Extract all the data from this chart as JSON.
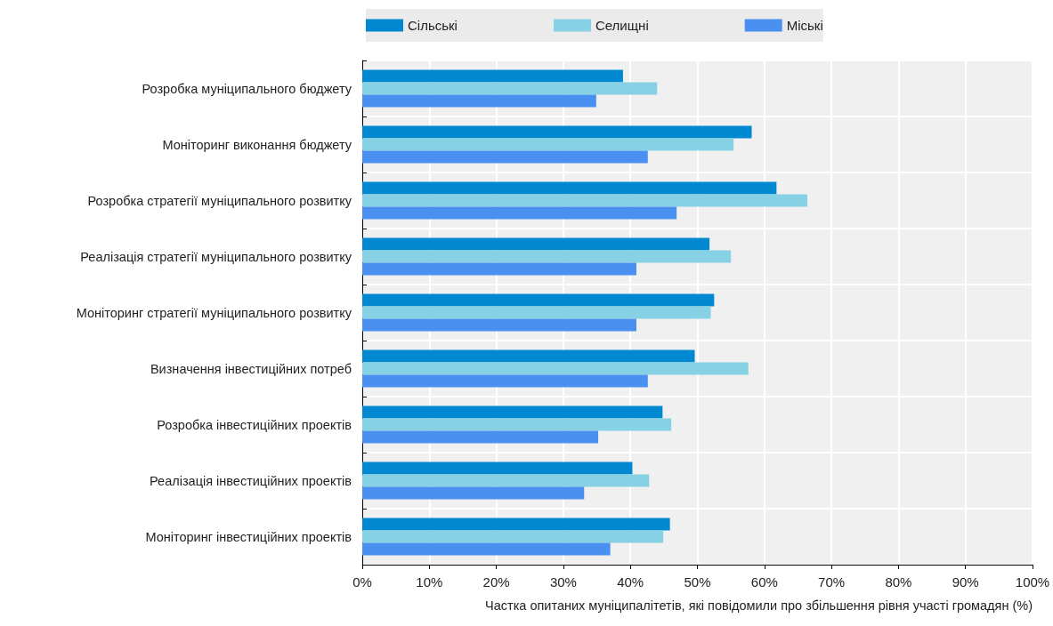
{
  "chart_data": {
    "type": "bar",
    "orientation": "horizontal",
    "xlabel": "Частка опитаних муніципалітетів, які повідомили про збільшення рівня участі громадян (%)",
    "categories": [
      "Розробка муніципального бюджету",
      "Моніторинг виконання бюджету",
      "Розробка стратегії муніципального розвитку",
      "Реалізація стратегії муніципального розвитку",
      "Моніторинг стратегії муніципального розвитку",
      "Визначення інвестиційних потреб",
      "Розробка інвестиційних проектів",
      "Реалізація інвестиційних проектів",
      "Моніторинг інвестиційних проектів"
    ],
    "series": [
      {
        "name": "Сільські",
        "color": "#0089d1",
        "values": [
          38.9,
          58.1,
          61.8,
          51.8,
          52.5,
          49.6,
          44.8,
          40.3,
          45.9
        ]
      },
      {
        "name": "Селищні",
        "color": "#87d1e4",
        "values": [
          44.0,
          55.4,
          66.4,
          55.0,
          52.0,
          57.6,
          46.1,
          42.8,
          44.9
        ]
      },
      {
        "name": "Міські",
        "color": "#4a90f0",
        "values": [
          34.9,
          42.6,
          46.9,
          40.9,
          40.9,
          42.6,
          35.2,
          33.1,
          37.0
        ]
      }
    ],
    "xlim": [
      0,
      100
    ],
    "xticks": [
      {
        "value": 0,
        "label": "0%"
      },
      {
        "value": 10,
        "label": "10%"
      },
      {
        "value": 20,
        "label": "20%"
      },
      {
        "value": 30,
        "label": "30%"
      },
      {
        "value": 40,
        "label": "40%"
      },
      {
        "value": 50,
        "label": "50%"
      },
      {
        "value": 60,
        "label": "60%"
      },
      {
        "value": 70,
        "label": "70%"
      },
      {
        "value": 80,
        "label": "80%"
      },
      {
        "value": 90,
        "label": "90%"
      },
      {
        "value": 100,
        "label": "100%"
      }
    ],
    "grid": true,
    "legend": "top"
  }
}
